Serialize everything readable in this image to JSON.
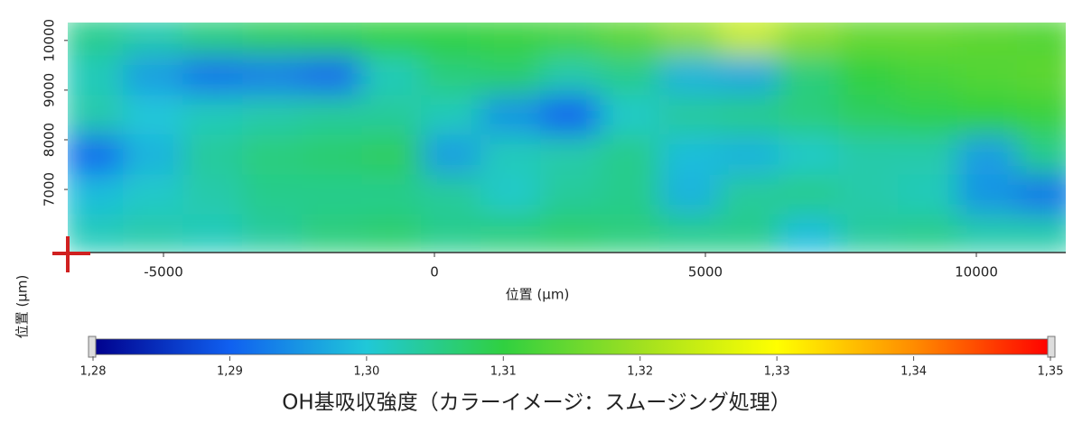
{
  "chart_data": {
    "type": "heatmap",
    "title": "OH基吸収強度（カラーイメージ：スムージング処理）",
    "x_label": "位置 (µm)",
    "y_label": "位置 (µm)",
    "x": [
      -6300,
      -5200,
      -4100,
      -3000,
      -1900,
      -800,
      300,
      1400,
      2500,
      3600,
      4700,
      5800,
      6900,
      8000,
      9100,
      10200,
      11300
    ],
    "y": [
      10100,
      9300,
      8500,
      7700,
      6900,
      6100
    ],
    "z": [
      [
        1.305,
        1.303,
        1.306,
        1.308,
        1.309,
        1.31,
        1.31,
        1.311,
        1.312,
        1.314,
        1.318,
        1.324,
        1.318,
        1.315,
        1.315,
        1.314,
        1.313
      ],
      [
        1.302,
        1.296,
        1.292,
        1.293,
        1.291,
        1.302,
        1.306,
        1.307,
        1.303,
        1.305,
        1.298,
        1.297,
        1.306,
        1.31,
        1.312,
        1.313,
        1.314
      ],
      [
        1.303,
        1.3,
        1.302,
        1.303,
        1.304,
        1.304,
        1.302,
        1.295,
        1.29,
        1.301,
        1.304,
        1.305,
        1.306,
        1.308,
        1.309,
        1.31,
        1.311
      ],
      [
        1.291,
        1.298,
        1.304,
        1.306,
        1.307,
        1.308,
        1.296,
        1.302,
        1.303,
        1.305,
        1.299,
        1.298,
        1.301,
        1.303,
        1.303,
        1.296,
        1.305
      ],
      [
        1.299,
        1.301,
        1.303,
        1.305,
        1.305,
        1.305,
        1.304,
        1.301,
        1.304,
        1.305,
        1.298,
        1.304,
        1.305,
        1.303,
        1.302,
        1.295,
        1.292
      ],
      [
        1.302,
        1.303,
        1.302,
        1.304,
        1.306,
        1.307,
        1.305,
        1.306,
        1.307,
        1.306,
        1.305,
        1.305,
        1.299,
        1.304,
        1.305,
        1.303,
        1.303
      ]
    ],
    "xlim": [
      -6767,
      11650
    ],
    "ylim": [
      5730,
      10360
    ],
    "xticks": [
      -5000,
      0,
      5000,
      10000
    ],
    "yticks": [
      7000,
      8000,
      9000,
      10000
    ],
    "zlim": [
      1.28,
      1.35
    ],
    "zticks": [
      {
        "value": 1.28,
        "label": "1,28"
      },
      {
        "value": 1.29,
        "label": "1,29"
      },
      {
        "value": 1.3,
        "label": "1,30"
      },
      {
        "value": 1.31,
        "label": "1,31"
      },
      {
        "value": 1.32,
        "label": "1,32"
      },
      {
        "value": 1.33,
        "label": "1,33"
      },
      {
        "value": 1.34,
        "label": "1,34"
      },
      {
        "value": 1.35,
        "label": "1,35"
      }
    ],
    "colormap": [
      "#00008c",
      "#1060f0",
      "#20c8d8",
      "#30d040",
      "#a0e020",
      "#ffff00",
      "#ff8c00",
      "#ff0000"
    ]
  }
}
